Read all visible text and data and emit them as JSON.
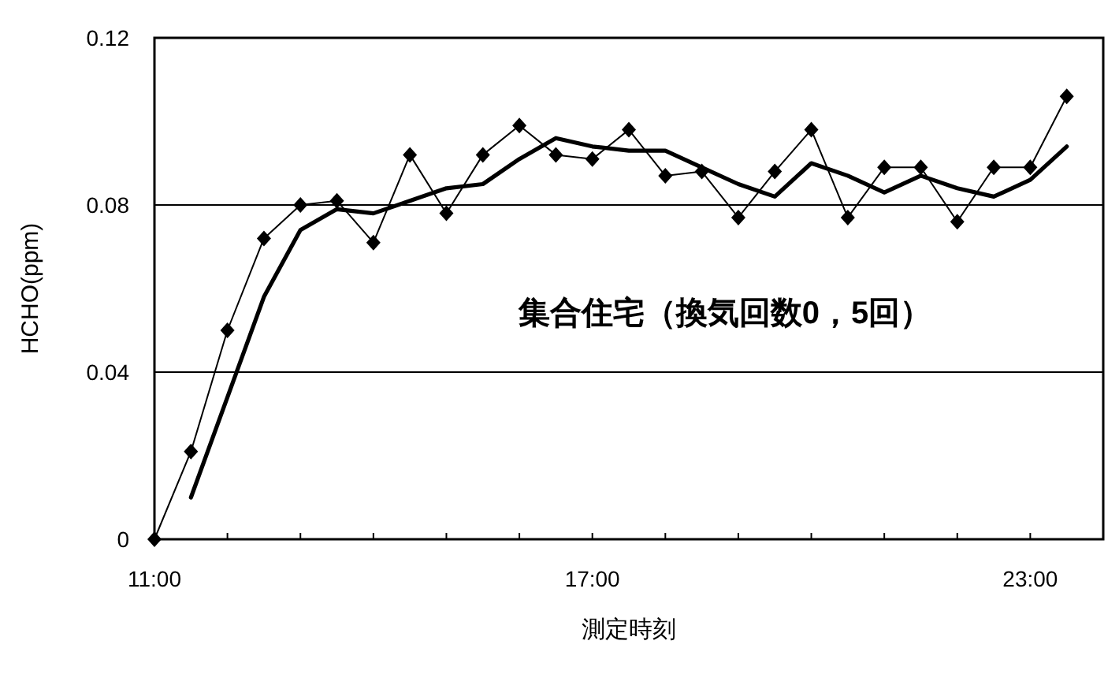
{
  "chart_data": {
    "type": "line",
    "ylabel": "HCHO(ppm)",
    "xlabel": "測定時刻",
    "annotations": [
      "集合住宅（換気回数0，5回）"
    ],
    "xlim": [
      11,
      24
    ],
    "xticks": [
      {
        "value": 11,
        "label": "11:00"
      },
      {
        "value": 12,
        "label": null
      },
      {
        "value": 13,
        "label": null
      },
      {
        "value": 14,
        "label": null
      },
      {
        "value": 15,
        "label": null
      },
      {
        "value": 16,
        "label": null
      },
      {
        "value": 17,
        "label": "17:00"
      },
      {
        "value": 18,
        "label": null
      },
      {
        "value": 19,
        "label": null
      },
      {
        "value": 20,
        "label": null
      },
      {
        "value": 21,
        "label": null
      },
      {
        "value": 22,
        "label": null
      },
      {
        "value": 23,
        "label": "23:00"
      }
    ],
    "ylim": [
      0,
      0.12
    ],
    "yticks": [
      0,
      0.04,
      0.08,
      0.12
    ],
    "grid": "y",
    "marker": "diamond",
    "line_style": "solid",
    "series": [
      {
        "color": "#000000",
        "x": [
          11,
          11.5,
          12,
          12.5,
          13,
          13.5,
          14,
          14.5,
          15,
          15.5,
          16,
          16.5,
          17,
          17.5,
          18,
          18.5,
          19,
          19.5,
          20,
          20.5,
          21,
          21.5,
          22,
          22.5,
          23,
          23.5
        ],
        "values": [
          0,
          0.021,
          0.05,
          0.072,
          0.08,
          0.081,
          0.071,
          0.092,
          0.078,
          0.092,
          0.099,
          0.092,
          0.091,
          0.098,
          0.087,
          0.088,
          0.077,
          0.088,
          0.098,
          0.077,
          0.089,
          0.089,
          0.076,
          0.089,
          0.089,
          0.106
        ]
      },
      {
        "color": "#000000",
        "marker": "none",
        "x": [
          11.5,
          12,
          12.5,
          13,
          13.5,
          14,
          14.5,
          15,
          15.5,
          16,
          16.5,
          17,
          17.5,
          18,
          18.5,
          19,
          19.5,
          20,
          20.5,
          21,
          21.5,
          22,
          22.5,
          23,
          23.5
        ],
        "values": [
          0.01,
          0.034,
          0.058,
          0.074,
          0.079,
          0.078,
          0.081,
          0.084,
          0.085,
          0.091,
          0.096,
          0.094,
          0.093,
          0.093,
          0.089,
          0.085,
          0.082,
          0.09,
          0.087,
          0.083,
          0.087,
          0.084,
          0.082,
          0.086,
          0.094
        ]
      }
    ]
  }
}
